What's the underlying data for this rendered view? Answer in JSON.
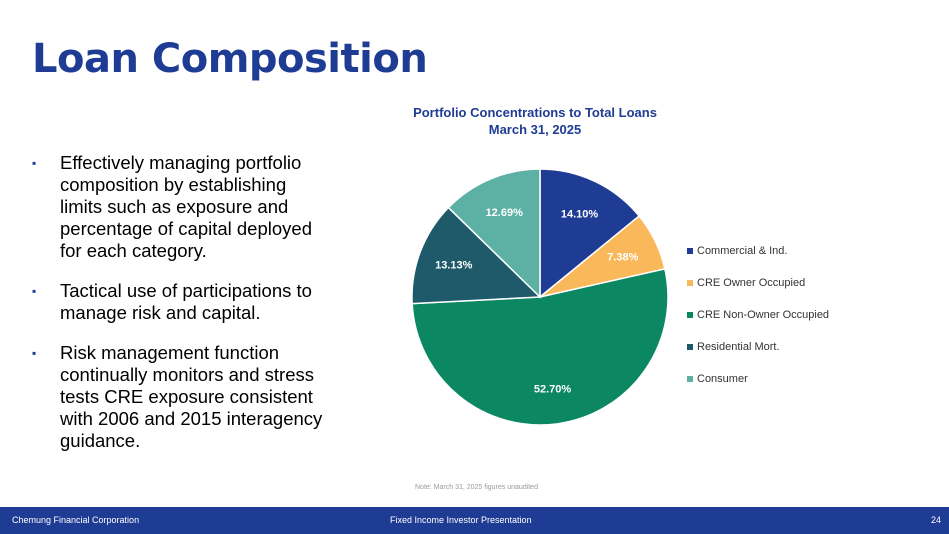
{
  "page": {
    "title": "Loan Composition",
    "bullets": [
      "Effectively managing portfolio composition by establishing limits such as exposure and percentage of capital deployed for each category.",
      "Tactical use of participations to manage risk and capital.",
      "Risk management function continually monitors and stress tests CRE exposure consistent with 2006 and 2015 interagency guidance."
    ],
    "bullet_marker": "▪",
    "note": "Note: March 31, 2025 figures unaudited"
  },
  "footer": {
    "company": "Chemung Financial Corporation",
    "presentation": "Fixed Income Investor Presentation",
    "page_number": "24"
  },
  "chart_data": {
    "type": "pie",
    "title": "Portfolio Concentrations to Total Loans",
    "subtitle": "March 31, 2025",
    "legend_position": "right",
    "slices": [
      {
        "label": "Commercial & Ind.",
        "value": 14.1,
        "display": "14.10%",
        "color": "#1f3c95"
      },
      {
        "label": "CRE Owner Occupied",
        "value": 7.38,
        "display": "7.38%",
        "color": "#f9b85a"
      },
      {
        "label": "CRE Non-Owner Occupied",
        "value": 52.7,
        "display": "52.70%",
        "color": "#0b8761"
      },
      {
        "label": "Residential Mort.",
        "value": 13.13,
        "display": "13.13%",
        "color": "#1e5a6a"
      },
      {
        "label": "Consumer",
        "value": 12.69,
        "display": "12.69%",
        "color": "#5db0a4"
      }
    ]
  }
}
